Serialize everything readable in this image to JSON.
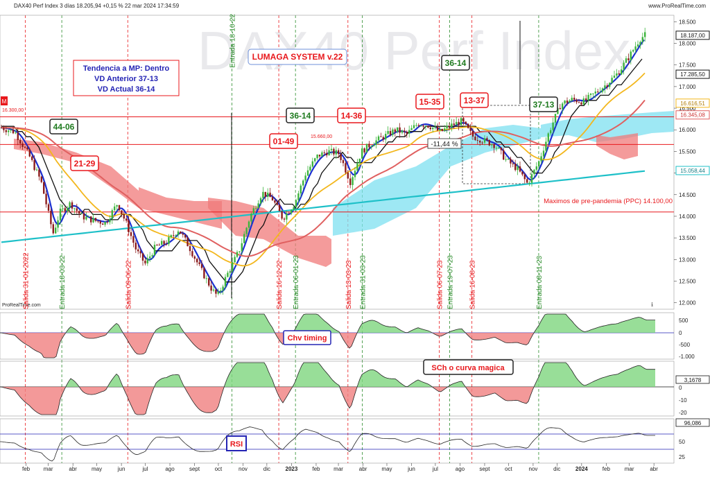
{
  "header": {
    "title": "DAX40 Perf Index 3 días 18.205,94 +0,15 % 22 mar 2024 17:34:59",
    "source": "www.ProRealTime.com",
    "watermark": "DAX40 Perf Index",
    "watermark_credit": "ProRealTime.com",
    "m_label": "M"
  },
  "info_box": {
    "line1": "Tendencia a MP: Dentro",
    "line2": "VD Anterior 37-13",
    "line3": "VD Actual 36-14"
  },
  "system_title": "LUMAGA SYSTEM v.22",
  "price_tags": {
    "last": "18.187,00",
    "ma_short": "17.285,50",
    "ma_mid": "16.616,51",
    "ma_long": "16.345,08",
    "ma_teal": "15.058,44"
  },
  "lines": {
    "hline_16300": "16.300,00",
    "hline_15660": "15.660,00",
    "ppc": "Maximos de pre-pandemia (PPC) 14.100,00",
    "pct_box": "-11,44 %"
  },
  "counts": [
    {
      "text": "44-06",
      "color": "green"
    },
    {
      "text": "21-29",
      "color": "red"
    },
    {
      "text": "01-49",
      "color": "red"
    },
    {
      "text": "36-14",
      "color": "green"
    },
    {
      "text": "14-36",
      "color": "red"
    },
    {
      "text": "15-35",
      "color": "red"
    },
    {
      "text": "36-14",
      "color": "green"
    },
    {
      "text": "13-37",
      "color": "red"
    },
    {
      "text": "37-13",
      "color": "green"
    }
  ],
  "signals": [
    {
      "text": "Salida 31-01-2022",
      "type": "salida"
    },
    {
      "text": "Entrada 18-03-22",
      "type": "entrada"
    },
    {
      "text": "Salida 09-06-22",
      "type": "salida"
    },
    {
      "text": "Entrada 18-10-22",
      "type": "entrada"
    },
    {
      "text": "Salida 16-12-22",
      "type": "salida"
    },
    {
      "text": "Entrada 06-01-23",
      "type": "entrada"
    },
    {
      "text": "Salida 13-03-23",
      "type": "salida"
    },
    {
      "text": "Entrada 31-03-23",
      "type": "entrada"
    },
    {
      "text": "Salida 06-07-23",
      "type": "salida"
    },
    {
      "text": "Entrada 19-07-23",
      "type": "entrada"
    },
    {
      "text": "Salida 16-08-23",
      "type": "salida"
    },
    {
      "text": "Entrada 08-11-23",
      "type": "entrada"
    }
  ],
  "panels": {
    "chv": {
      "label": "Chv timing",
      "ticks": [
        "500",
        "0",
        "-500",
        "-1.000"
      ]
    },
    "sch": {
      "label": "SCh o curva magica",
      "value": "3,1678",
      "ticks": [
        "0",
        "-10",
        "-20"
      ],
      "tick_value_zero": "0"
    },
    "rsi": {
      "label": "RSI",
      "value": "96,086",
      "ticks": [
        "50",
        "25"
      ]
    }
  },
  "colors": {
    "red": "#e8171b",
    "green": "#1e7a1e",
    "blue_box": "#2323b4",
    "teal": "#1ec0c8",
    "orange": "#f3b71d",
    "salmon": "#e06060",
    "kumo_red": "#f07a7a",
    "kumo_blue": "#7de0f0"
  },
  "chart_data": {
    "type": "line",
    "title": "DAX40 Perf Index 3 días",
    "y_ticks": [
      "18.500",
      "18.000",
      "17.500",
      "17.000",
      "16.500",
      "16.000",
      "15.500",
      "15.000",
      "14.500",
      "14.000",
      "13.500",
      "13.000",
      "12.500",
      "12.000"
    ],
    "x_ticks": [
      "feb",
      "mar",
      "abr",
      "may",
      "jun",
      "jul",
      "ago",
      "sept",
      "oct",
      "nov",
      "dic",
      "2023",
      "feb",
      "mar",
      "abr",
      "may",
      "jun",
      "jul",
      "ago",
      "sept",
      "oct",
      "nov",
      "dic",
      "2024",
      "feb",
      "mar",
      "abr"
    ],
    "ylim": [
      11850,
      18650
    ],
    "dates": [
      "2022-01-01",
      "2022-01-18",
      "2022-02-05",
      "2022-02-20",
      "2022-03-07",
      "2022-03-16",
      "2022-03-29",
      "2022-04-12",
      "2022-04-28",
      "2022-05-12",
      "2022-05-27",
      "2022-06-08",
      "2022-06-20",
      "2022-07-01",
      "2022-07-14",
      "2022-07-28",
      "2022-08-12",
      "2022-08-25",
      "2022-09-08",
      "2022-09-23",
      "2022-09-30",
      "2022-10-12",
      "2022-10-27",
      "2022-11-10",
      "2022-11-25",
      "2022-12-08",
      "2022-12-21",
      "2023-01-05",
      "2023-01-19",
      "2023-02-03",
      "2023-02-16",
      "2023-03-02",
      "2023-03-16",
      "2023-03-30",
      "2023-04-13",
      "2023-04-28",
      "2023-05-12",
      "2023-05-26",
      "2023-06-09",
      "2023-06-23",
      "2023-07-07",
      "2023-07-21",
      "2023-08-03",
      "2023-08-17",
      "2023-08-31",
      "2023-09-14",
      "2023-09-28",
      "2023-10-12",
      "2023-10-25",
      "2023-11-08",
      "2023-11-22",
      "2023-12-06",
      "2023-12-20",
      "2024-01-04",
      "2024-01-18",
      "2024-02-01",
      "2024-02-15",
      "2024-03-01",
      "2024-03-14",
      "2024-03-22"
    ],
    "series": [
      {
        "values": [
          16050,
          15950,
          15400,
          14800,
          13600,
          14100,
          14300,
          14000,
          13900,
          13850,
          14300,
          13800,
          13200,
          12900,
          13300,
          13400,
          13700,
          13300,
          12800,
          12300,
          12150,
          12650,
          13200,
          14000,
          14550,
          14400,
          13950,
          14300,
          15000,
          15400,
          15500,
          15450,
          14800,
          15500,
          15700,
          15850,
          16000,
          15900,
          16150,
          16100,
          15950,
          16100,
          16200,
          15850,
          15750,
          15650,
          15300,
          15100,
          14750,
          15250,
          16000,
          16600,
          16700,
          16650,
          16850,
          17050,
          17300,
          17700,
          18100,
          18206
        ]
      }
    ]
  }
}
